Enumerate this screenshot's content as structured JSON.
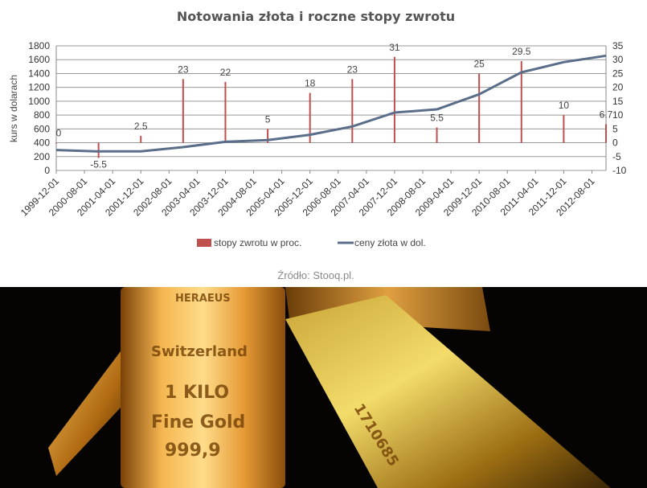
{
  "chart_data": {
    "type": "bar+line",
    "title": "Notowania złota i roczne stopy zwrotu",
    "ylabel": "kurs w dolarach",
    "ylim": [
      0,
      1800
    ],
    "y2lim": [
      -10,
      35
    ],
    "yticks": [
      "0",
      "200",
      "400",
      "600",
      "800",
      "1000",
      "1200",
      "1400",
      "1600",
      "1800"
    ],
    "y2ticks": [
      "-10",
      "-5",
      "0",
      "5",
      "10",
      "15",
      "20",
      "25",
      "30",
      "35"
    ],
    "xlim": [
      "1999-12-01",
      "2012-12-01"
    ],
    "xticks": [
      "1999-12-01",
      "2000-08-01",
      "2001-04-01",
      "2001-12-01",
      "2002-08-01",
      "2003-04-01",
      "2003-12-01",
      "2004-08-01",
      "2005-04-01",
      "2005-12-01",
      "2006-08-01",
      "2007-04-01",
      "2007-12-01",
      "2008-08-01",
      "2009-04-01",
      "2009-12-01",
      "2010-08-01",
      "2011-04-01",
      "2011-12-01",
      "2012-08-01"
    ],
    "grid": true,
    "legend_position": "bottom",
    "x": [
      "1999-12",
      "2000-12",
      "2001-12",
      "2002-12",
      "2003-12",
      "2004-12",
      "2005-12",
      "2006-12",
      "2007-12",
      "2008-12",
      "2009-12",
      "2010-12",
      "2011-12",
      "2012-12"
    ],
    "series": [
      {
        "name": "stopy zwrotu w proc.",
        "type": "bar",
        "axis": "right",
        "color": "#c0504d",
        "values": [
          0,
          -5.5,
          2.5,
          23,
          22,
          5,
          18,
          23,
          31,
          5.5,
          25,
          29.5,
          10,
          6.7
        ],
        "labels": [
          "0",
          "-5.5",
          "2.5",
          "23",
          "22",
          "5",
          "18",
          "23",
          "31",
          "5.5",
          "25",
          "29.5",
          "10",
          "6.7"
        ]
      },
      {
        "name": "ceny złota w dol.",
        "type": "line",
        "axis": "left",
        "color": "#5a6e8a",
        "values": [
          294,
          275,
          276,
          337,
          414,
          438,
          515,
          635,
          836,
          882,
          1100,
          1417,
          1564,
          1657
        ]
      }
    ],
    "source": "Źródło: Stooq.pl."
  },
  "photo": {
    "lettering": [
      "HERAEUS",
      "Switzerland",
      "1 KILO",
      "Fine Gold",
      "999,9",
      "1710685"
    ]
  }
}
